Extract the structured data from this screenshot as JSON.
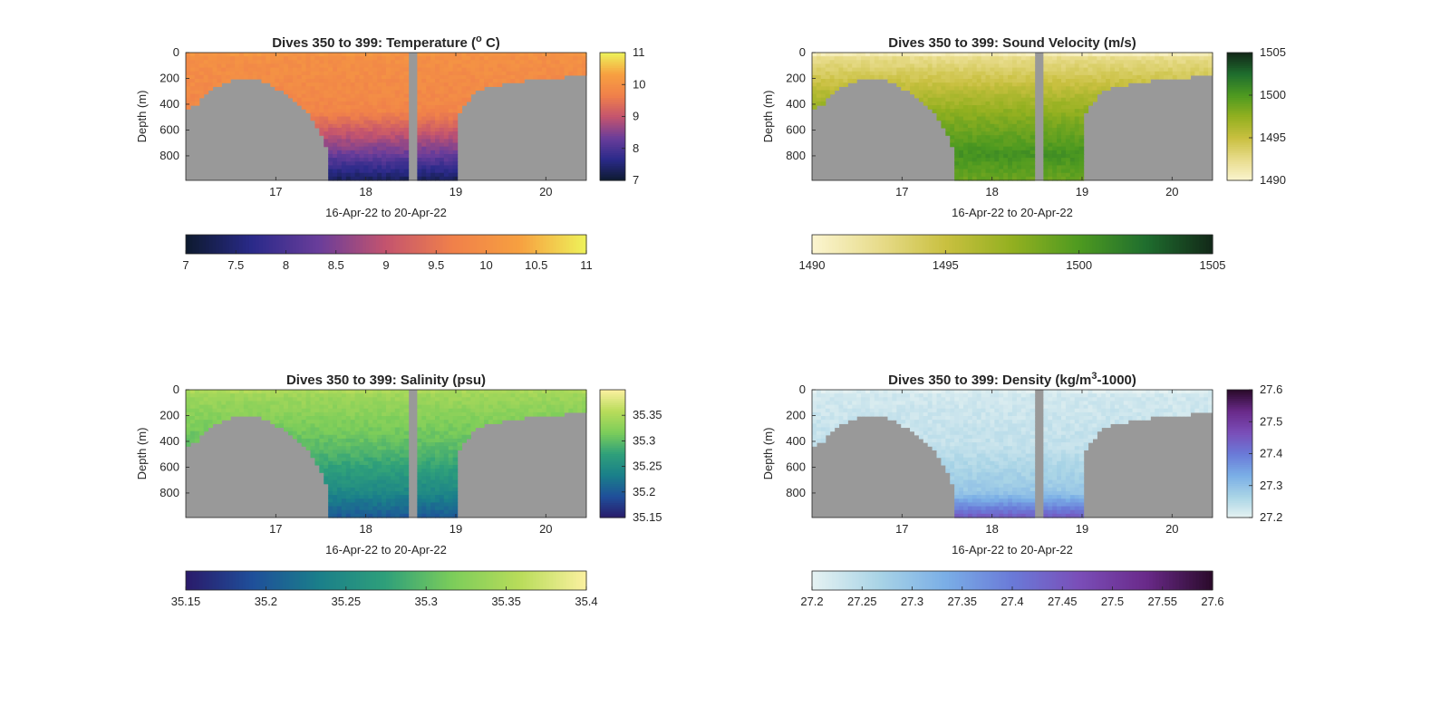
{
  "chart_data": [
    {
      "type": "heatmap",
      "title": "Dives 350 to 399: Temperature (",
      "title_sup": "o",
      "title_after": " C)",
      "xlabel": "16-Apr-22 to 20-Apr-22",
      "ylabel": "Depth (m)",
      "x_ticks": [
        "17",
        "18",
        "19",
        "20"
      ],
      "x_tick_values": [
        17,
        18,
        19,
        20
      ],
      "xlim": [
        16.0,
        20.45
      ],
      "y_ticks": [
        "0",
        "200",
        "400",
        "600",
        "800"
      ],
      "y_tick_values": [
        0,
        200,
        400,
        600,
        800
      ],
      "ylim": [
        0,
        990
      ],
      "colormap": [
        "#0d1a2e",
        "#2a2a8a",
        "#6a3d9a",
        "#c4546e",
        "#f0804a",
        "#f7a040",
        "#eef25a"
      ],
      "clim": [
        7,
        11
      ],
      "side_colorbar_ticks": [
        "7",
        "8",
        "9",
        "10",
        "11"
      ],
      "side_colorbar_tick_values": [
        7,
        8,
        9,
        10,
        11
      ],
      "bottom_colorbar_ticks": [
        "7",
        "7.5",
        "8",
        "8.5",
        "9",
        "9.5",
        "10",
        "10.5",
        "11"
      ],
      "bottom_colorbar_tick_values": [
        7,
        7.5,
        8,
        8.5,
        9,
        9.5,
        10,
        10.5,
        11
      ],
      "profile": {
        "surface": 10.0,
        "mid": 9.8,
        "deep": 8.3,
        "bottom": 7.3,
        "top_band": 10.1
      },
      "gap_time": 18.52,
      "gap_width": 0.08
    },
    {
      "type": "heatmap",
      "title": "Dives 350 to 399: Sound Velocity (m/s)",
      "xlabel": "16-Apr-22 to 20-Apr-22",
      "ylabel": "Depth (m)",
      "x_ticks": [
        "17",
        "18",
        "19",
        "20"
      ],
      "x_tick_values": [
        17,
        18,
        19,
        20
      ],
      "xlim": [
        16.0,
        20.45
      ],
      "y_ticks": [
        "0",
        "200",
        "400",
        "600",
        "800"
      ],
      "y_tick_values": [
        0,
        200,
        400,
        600,
        800
      ],
      "ylim": [
        0,
        990
      ],
      "colormap": [
        "#fbf5d0",
        "#e8dc8c",
        "#c9c040",
        "#93b020",
        "#4e9a20",
        "#1f6e2e",
        "#122818"
      ],
      "clim": [
        1490,
        1505
      ],
      "side_colorbar_ticks": [
        "1490",
        "1495",
        "1500",
        "1505"
      ],
      "side_colorbar_tick_values": [
        1490,
        1495,
        1500,
        1505
      ],
      "bottom_colorbar_ticks": [
        "1490",
        "1495",
        "1500",
        "1505"
      ],
      "bottom_colorbar_tick_values": [
        1490,
        1495,
        1500,
        1505
      ],
      "profile": {
        "surface": 1492.0,
        "mid": 1497.5,
        "deep": 1500.5,
        "bottom": 1499.0,
        "top_band": 1491.0
      },
      "gap_time": 18.52,
      "gap_width": 0.08
    },
    {
      "type": "heatmap",
      "title": "Dives 350 to 399: Salinity (psu)",
      "xlabel": "16-Apr-22 to 20-Apr-22",
      "ylabel": "Depth (m)",
      "x_ticks": [
        "17",
        "18",
        "19",
        "20"
      ],
      "x_tick_values": [
        17,
        18,
        19,
        20
      ],
      "xlim": [
        16.0,
        20.45
      ],
      "y_ticks": [
        "0",
        "200",
        "400",
        "600",
        "800"
      ],
      "y_tick_values": [
        0,
        200,
        400,
        600,
        800
      ],
      "ylim": [
        0,
        990
      ],
      "colormap": [
        "#2a1a6a",
        "#1f4f9a",
        "#1a7f8a",
        "#2fa07a",
        "#7ccd5a",
        "#b8dc5a",
        "#fbf0a0"
      ],
      "clim": [
        35.15,
        35.4
      ],
      "side_colorbar_ticks": [
        "35.15",
        "35.2",
        "35.25",
        "35.3",
        "35.35"
      ],
      "side_colorbar_tick_values": [
        35.15,
        35.2,
        35.25,
        35.3,
        35.35
      ],
      "bottom_colorbar_ticks": [
        "35.15",
        "35.2",
        "35.25",
        "35.3",
        "35.35",
        "35.4"
      ],
      "bottom_colorbar_tick_values": [
        35.15,
        35.2,
        35.25,
        35.3,
        35.35,
        35.4
      ],
      "profile": {
        "surface": 35.345,
        "mid": 35.3,
        "deep": 35.245,
        "bottom": 35.2,
        "top_band": 35.35
      },
      "gap_time": 18.52,
      "gap_width": 0.08
    },
    {
      "type": "heatmap",
      "title": "Dives 350 to 399: Density (kg/m",
      "title_sup": "3",
      "title_after": "-1000)",
      "xlabel": "16-Apr-22 to 20-Apr-22",
      "ylabel": "Depth (m)",
      "x_ticks": [
        "17",
        "18",
        "19",
        "20"
      ],
      "x_tick_values": [
        17,
        18,
        19,
        20
      ],
      "xlim": [
        16.0,
        20.45
      ],
      "y_ticks": [
        "0",
        "200",
        "400",
        "600",
        "800"
      ],
      "y_tick_values": [
        0,
        200,
        400,
        600,
        800
      ],
      "ylim": [
        0,
        990
      ],
      "colormap": [
        "#e6f2f2",
        "#a9d4e6",
        "#7aaee6",
        "#6a7ad8",
        "#7a4eb8",
        "#6a2a8a",
        "#2a0a2a"
      ],
      "clim": [
        27.2,
        27.6
      ],
      "side_colorbar_ticks": [
        "27.2",
        "27.3",
        "27.4",
        "27.5",
        "27.6"
      ],
      "side_colorbar_tick_values": [
        27.2,
        27.3,
        27.4,
        27.5,
        27.6
      ],
      "bottom_colorbar_ticks": [
        "27.2",
        "27.25",
        "27.3",
        "27.35",
        "27.4",
        "27.45",
        "27.5",
        "27.55",
        "27.6"
      ],
      "bottom_colorbar_tick_values": [
        27.2,
        27.25,
        27.3,
        27.35,
        27.4,
        27.45,
        27.5,
        27.55,
        27.6
      ],
      "profile": {
        "surface": 27.22,
        "mid": 27.24,
        "deep": 27.29,
        "bottom": 27.45,
        "top_band": 27.21
      },
      "gap_time": 18.52,
      "gap_width": 0.08
    }
  ],
  "bathymetry": {
    "columns_count": 90,
    "bottom_depth_m": [
      430,
      420,
      400,
      360,
      320,
      290,
      270,
      250,
      230,
      220,
      210,
      205,
      200,
      200,
      200,
      205,
      210,
      225,
      240,
      260,
      280,
      300,
      330,
      360,
      380,
      410,
      440,
      470,
      520,
      580,
      650,
      720,
      990,
      990,
      990,
      990,
      990,
      990,
      990,
      990,
      990,
      990,
      990,
      990,
      990,
      990,
      990,
      990,
      990,
      990,
      990,
      990,
      990,
      990,
      990,
      990,
      990,
      990,
      990,
      990,
      990,
      480,
      420,
      380,
      320,
      300,
      280,
      270,
      260,
      250,
      250,
      240,
      235,
      230,
      225,
      220,
      215,
      210,
      205,
      200,
      200,
      195,
      195,
      190,
      190,
      185,
      185,
      185,
      185,
      185
    ],
    "colors": {
      "seafloor": "#999999"
    }
  }
}
